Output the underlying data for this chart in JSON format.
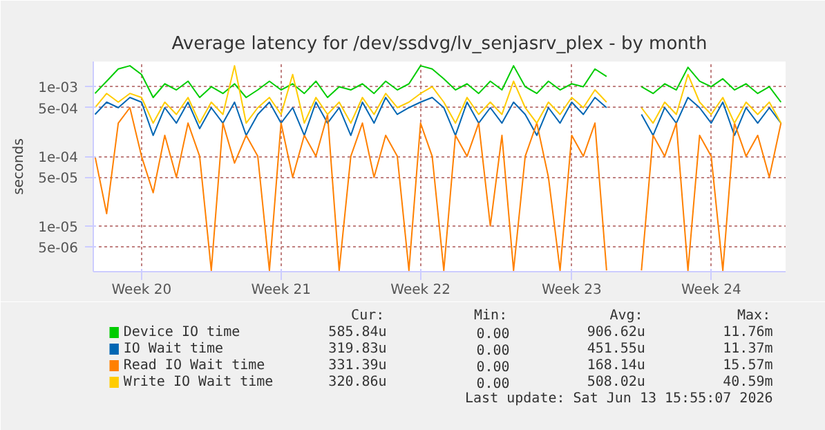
{
  "chart_data": {
    "type": "line",
    "title": "Average latency for /dev/ssdvg/lv_senjasrv_plex - by month",
    "ylabel": "seconds",
    "log": "y",
    "grid": true,
    "legend": "bottom",
    "line_style": "solid",
    "marker": "none",
    "categories": [
      null,
      null,
      null,
      null,
      "Week 20",
      null,
      null,
      null,
      null,
      null,
      null,
      null,
      null,
      null,
      null,
      null,
      "Week 21",
      null,
      null,
      null,
      null,
      null,
      null,
      null,
      null,
      null,
      null,
      null,
      "Week 22",
      null,
      null,
      null,
      null,
      null,
      null,
      null,
      null,
      null,
      null,
      null,
      null,
      "Week 23",
      null,
      null,
      null,
      null,
      null,
      null,
      null,
      null,
      null,
      null,
      null,
      "Week 24",
      null,
      null,
      null,
      null,
      null,
      null
    ],
    "ylim": [
      2.2e-06,
      0.0023
    ],
    "yticks": [
      {
        "value": 1e-05,
        "label": "1e-05"
      },
      {
        "value": 5e-06,
        "label": "5e-06"
      },
      {
        "value": 0.0001,
        "label": "1e-04"
      },
      {
        "value": 5e-05,
        "label": "5e-05"
      },
      {
        "value": 0.001,
        "label": "1e-03"
      },
      {
        "value": 0.0005,
        "label": "5e-04"
      }
    ],
    "series": [
      {
        "name": "Device IO time",
        "color": "#00cc00",
        "values": [
          0.0008,
          0.0012,
          0.0018,
          0.002,
          0.0015,
          0.0007,
          0.0011,
          0.0009,
          0.0012,
          0.0007,
          0.001,
          0.0008,
          0.0011,
          0.0007,
          0.0009,
          0.0012,
          0.0009,
          0.0011,
          0.0008,
          0.0012,
          0.0007,
          0.001,
          0.0009,
          0.0011,
          0.0008,
          0.0012,
          0.0009,
          0.0011,
          0.002,
          0.0018,
          0.0013,
          0.0009,
          0.0011,
          0.0008,
          0.0012,
          0.0009,
          0.002,
          0.001,
          0.0008,
          0.0012,
          0.0009,
          0.0011,
          0.001,
          0.0018,
          0.0014,
          null,
          null,
          0.001,
          0.0008,
          0.0011,
          0.0009,
          0.0019,
          0.0012,
          0.001,
          0.0013,
          0.0009,
          0.0011,
          0.0008,
          0.001,
          0.0006
        ]
      },
      {
        "name": "IO Wait time",
        "color": "#0066b3",
        "values": [
          0.0004,
          0.0006,
          0.0005,
          0.0007,
          0.0006,
          0.0002,
          0.0005,
          0.0003,
          0.0006,
          0.00025,
          0.0005,
          0.0003,
          0.0006,
          0.0002,
          0.0004,
          0.0006,
          0.0003,
          0.0005,
          0.0002,
          0.0006,
          0.0003,
          0.0005,
          0.0002,
          0.0006,
          0.0003,
          0.0007,
          0.0004,
          0.0005,
          0.0006,
          0.0007,
          0.0005,
          0.0002,
          0.0006,
          0.0003,
          0.0005,
          0.0003,
          0.0006,
          0.0004,
          0.0002,
          0.0005,
          0.0003,
          0.0006,
          0.0004,
          0.0007,
          0.0005,
          null,
          null,
          0.0004,
          0.0002,
          0.0005,
          0.0003,
          0.0007,
          0.0005,
          0.0003,
          0.0006,
          0.0002,
          0.0005,
          0.0003,
          0.0005,
          0.0003
        ]
      },
      {
        "name": "Read IO Wait time",
        "color": "#ff8000",
        "values": [
          0.0001,
          1.5e-05,
          0.0003,
          0.0005,
          0.0001,
          3e-05,
          0.0002,
          5e-05,
          0.0003,
          0.0001,
          2.3e-06,
          0.0003,
          8e-05,
          0.0002,
          0.0001,
          2.3e-06,
          0.0003,
          5e-05,
          0.0002,
          0.0001,
          0.0004,
          2.3e-06,
          0.0001,
          0.0003,
          5e-05,
          0.0002,
          0.0001,
          2.3e-06,
          0.0003,
          0.0001,
          2.3e-06,
          0.0002,
          0.0001,
          0.0003,
          1e-05,
          0.0002,
          2.3e-06,
          0.0001,
          0.0003,
          5e-05,
          2.3e-06,
          0.0002,
          0.0001,
          0.0003,
          2.3e-06,
          null,
          null,
          2.3e-06,
          0.0002,
          0.0001,
          0.0003,
          2.3e-06,
          0.0002,
          0.0001,
          2.3e-06,
          0.0003,
          0.0001,
          0.0002,
          5e-05,
          0.0003
        ]
      },
      {
        "name": "Write IO Wait time",
        "color": "#ffcc00",
        "values": [
          0.0005,
          0.0008,
          0.0006,
          0.0008,
          0.0007,
          0.0003,
          0.0006,
          0.0004,
          0.0007,
          0.0003,
          0.0006,
          0.0004,
          0.002,
          0.0003,
          0.0005,
          0.0007,
          0.0004,
          0.0015,
          0.0003,
          0.0007,
          0.0004,
          0.0006,
          0.0003,
          0.0007,
          0.0004,
          0.0008,
          0.0005,
          0.0006,
          0.0008,
          0.001,
          0.0006,
          0.0003,
          0.0007,
          0.0004,
          0.0006,
          0.0004,
          0.0012,
          0.0005,
          0.0003,
          0.0006,
          0.0004,
          0.0007,
          0.0005,
          0.0009,
          0.0006,
          null,
          null,
          0.0005,
          0.0003,
          0.0006,
          0.0004,
          0.0015,
          0.0006,
          0.0004,
          0.0007,
          0.0003,
          0.0006,
          0.0004,
          0.0006,
          0.0003
        ]
      }
    ],
    "annotations": [
      "Cur:",
      "Min:",
      "Avg:",
      "Max:",
      "585.84u",
      "0.00",
      "906.62u",
      "11.76m",
      "319.83u",
      "0.00",
      "451.55u",
      "11.37m",
      "331.39u",
      "0.00",
      "168.14u",
      "15.57m",
      "320.86u",
      "0.00",
      "508.02u",
      "40.59m",
      "Last update: Sat Jun 13 15:55:07 2026"
    ]
  }
}
